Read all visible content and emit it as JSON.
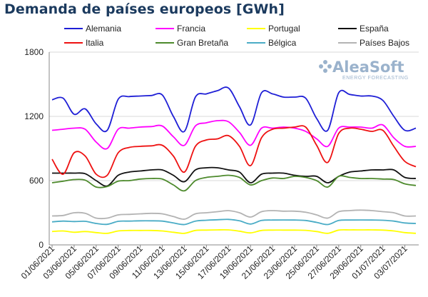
{
  "chart_data": {
    "type": "line",
    "title": "Demanda de países europeos [GWh]",
    "ylim": [
      0,
      1800
    ],
    "yticks": [
      0,
      600,
      1200,
      1800
    ],
    "grid": true,
    "legend_position": "top",
    "x": [
      "01/06/2021",
      "02/06/2021",
      "03/06/2021",
      "04/06/2021",
      "05/06/2021",
      "06/06/2021",
      "07/06/2021",
      "08/06/2021",
      "09/06/2021",
      "10/06/2021",
      "11/06/2021",
      "12/06/2021",
      "13/06/2021",
      "14/06/2021",
      "15/06/2021",
      "16/06/2021",
      "17/06/2021",
      "18/06/2021",
      "19/06/2021",
      "20/06/2021",
      "21/06/2021",
      "22/06/2021",
      "23/06/2021",
      "24/06/2021",
      "25/06/2021",
      "26/06/2021",
      "27/06/2021",
      "28/06/2021",
      "29/06/2021",
      "30/06/2021",
      "01/07/2021",
      "02/07/2021",
      "03/07/2021",
      "04/07/2021"
    ],
    "xtick_labels": [
      "01/06/2021",
      "03/06/2021",
      "05/06/2021",
      "07/06/2021",
      "09/06/2021",
      "11/06/2021",
      "13/06/2021",
      "15/06/2021",
      "17/06/2021",
      "19/06/2021",
      "21/06/2021",
      "23/06/2021",
      "25/06/2021",
      "27/06/2021",
      "29/06/2021",
      "01/07/2021",
      "03/07/2021"
    ],
    "series": [
      {
        "name": "Alemania",
        "color": "#1f1fd6",
        "values": [
          1355,
          1370,
          1220,
          1270,
          1130,
          1070,
          1360,
          1385,
          1390,
          1395,
          1400,
          1200,
          1060,
          1380,
          1410,
          1440,
          1465,
          1290,
          1120,
          1420,
          1410,
          1380,
          1380,
          1370,
          1180,
          1070,
          1420,
          1405,
          1390,
          1390,
          1350,
          1200,
          1070,
          1090
        ]
      },
      {
        "name": "Francia",
        "color": "#ff00ff",
        "values": [
          1070,
          1080,
          1090,
          1080,
          960,
          900,
          1080,
          1090,
          1100,
          1105,
          1110,
          1010,
          930,
          1110,
          1140,
          1160,
          1150,
          1050,
          930,
          1090,
          1090,
          1100,
          1090,
          1060,
          990,
          920,
          1090,
          1100,
          1100,
          1090,
          1120,
          1000,
          920,
          920
        ]
      },
      {
        "name": "Portugal",
        "color": "#ffff00",
        "values": [
          125,
          130,
          118,
          125,
          115,
          108,
          130,
          135,
          135,
          135,
          130,
          118,
          108,
          135,
          138,
          140,
          140,
          128,
          112,
          135,
          138,
          138,
          138,
          136,
          125,
          108,
          138,
          140,
          140,
          140,
          138,
          130,
          115,
          108
        ]
      },
      {
        "name": "España",
        "color": "#111111",
        "values": [
          670,
          670,
          670,
          665,
          600,
          550,
          650,
          680,
          690,
          700,
          700,
          650,
          590,
          700,
          720,
          720,
          700,
          680,
          580,
          660,
          670,
          670,
          650,
          640,
          640,
          580,
          640,
          680,
          690,
          700,
          700,
          700,
          630,
          620
        ]
      },
      {
        "name": "Italia",
        "color": "#ee1111",
        "values": [
          800,
          660,
          860,
          830,
          660,
          650,
          860,
          910,
          920,
          925,
          930,
          830,
          680,
          920,
          980,
          990,
          1020,
          920,
          740,
          1000,
          1080,
          1090,
          1100,
          1100,
          930,
          770,
          1040,
          1090,
          1080,
          1060,
          1070,
          920,
          780,
          730
        ]
      },
      {
        "name": "Gran Bretaña",
        "color": "#4d8a2c",
        "values": [
          580,
          595,
          610,
          605,
          540,
          545,
          595,
          600,
          615,
          620,
          615,
          560,
          505,
          600,
          630,
          640,
          650,
          630,
          560,
          600,
          625,
          620,
          640,
          630,
          600,
          540,
          640,
          630,
          620,
          620,
          615,
          610,
          570,
          555
        ]
      },
      {
        "name": "Bélgica",
        "color": "#4aacc6",
        "values": [
          215,
          222,
          218,
          220,
          200,
          192,
          220,
          222,
          225,
          225,
          222,
          205,
          190,
          222,
          230,
          235,
          238,
          225,
          195,
          228,
          232,
          233,
          232,
          228,
          210,
          190,
          228,
          232,
          233,
          232,
          230,
          222,
          205,
          200
        ]
      },
      {
        "name": "Países Bajos",
        "color": "#b3b3b3",
        "values": [
          270,
          275,
          300,
          295,
          250,
          250,
          280,
          285,
          290,
          295,
          290,
          265,
          240,
          290,
          300,
          310,
          320,
          300,
          260,
          310,
          320,
          315,
          315,
          305,
          280,
          250,
          310,
          320,
          325,
          320,
          310,
          300,
          270,
          270
        ]
      }
    ]
  },
  "logo": {
    "name": "AleaSoft",
    "tagline": "ENERGY FORECASTING"
  }
}
